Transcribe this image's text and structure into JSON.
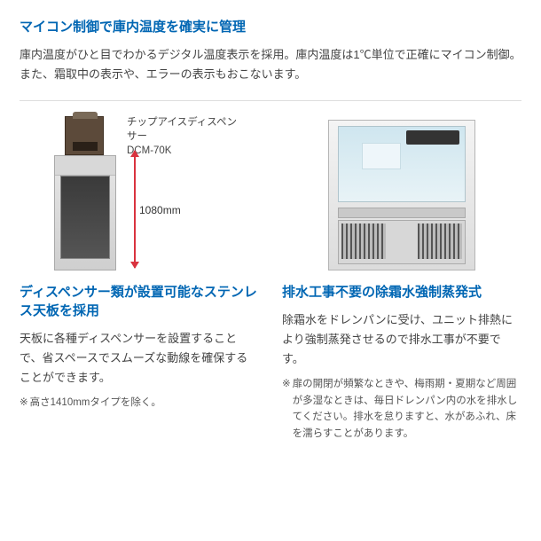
{
  "section1": {
    "heading": "マイコン制御で庫内温度を確実に管理",
    "body": "庫内温度がひと目でわかるデジタル温度表示を採用。庫内温度は1℃単位で正確にマイコン制御。また、霜取中の表示や、エラーの表示もおこないます。"
  },
  "left": {
    "fig": {
      "label_line1": "チップアイスディスペンサー",
      "label_line2": "DCM-70K",
      "dimension": "1080mm",
      "arrow_color": "#d9333f"
    },
    "heading": "ディスペンサー類が設置可能なステンレス天板を採用",
    "body": "天板に各種ディスペンサーを設置することで、省スペースでスムーズな動線を確保することができます。",
    "note": "高さ1410mmタイプを除く。"
  },
  "right": {
    "heading": "排水工事不要の除霜水強制蒸発式",
    "body": "除霜水をドレンパンに受け、ユニット排熱により強制蒸発させるので排水工事が不要です。",
    "note": "扉の開閉が頻繁なときや、梅雨期・夏期など周囲が多湿なときは、毎日ドレンパン内の水を排水してください。排水を怠りますと、水があふれ、床を濡らすことがあります。"
  },
  "colors": {
    "heading": "#0066b3",
    "text": "#444444",
    "note": "#555555",
    "divider": "#dddddd"
  }
}
